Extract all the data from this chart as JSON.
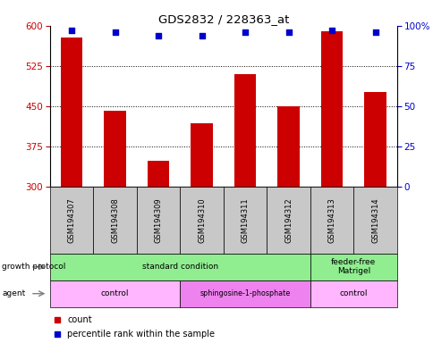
{
  "title": "GDS2832 / 228363_at",
  "samples": [
    "GSM194307",
    "GSM194308",
    "GSM194309",
    "GSM194310",
    "GSM194311",
    "GSM194312",
    "GSM194313",
    "GSM194314"
  ],
  "counts": [
    578,
    441,
    348,
    418,
    510,
    449,
    590,
    476
  ],
  "percentiles": [
    97,
    96,
    94,
    94,
    96,
    96,
    97,
    96
  ],
  "ylim_left": [
    300,
    600
  ],
  "ylim_right": [
    0,
    100
  ],
  "yticks_left": [
    300,
    375,
    450,
    525,
    600
  ],
  "yticks_right": [
    0,
    25,
    50,
    75,
    100
  ],
  "gp_groups": [
    {
      "label": "standard condition",
      "start": 0,
      "end": 6,
      "color": "#90EE90"
    },
    {
      "label": "feeder-free\nMatrigel",
      "start": 6,
      "end": 8,
      "color": "#90EE90"
    }
  ],
  "agent_groups": [
    {
      "label": "control",
      "start": 0,
      "end": 3,
      "color": "#FFB6FF"
    },
    {
      "label": "sphingosine-1-phosphate",
      "start": 3,
      "end": 6,
      "color": "#EE82EE"
    },
    {
      "label": "control",
      "start": 6,
      "end": 8,
      "color": "#FFB6FF"
    }
  ],
  "bar_color": "#CC0000",
  "dot_color": "#0000CC",
  "left_axis_color": "#CC0000",
  "right_axis_color": "#0000CC",
  "header_bg": "#C8C8C8"
}
